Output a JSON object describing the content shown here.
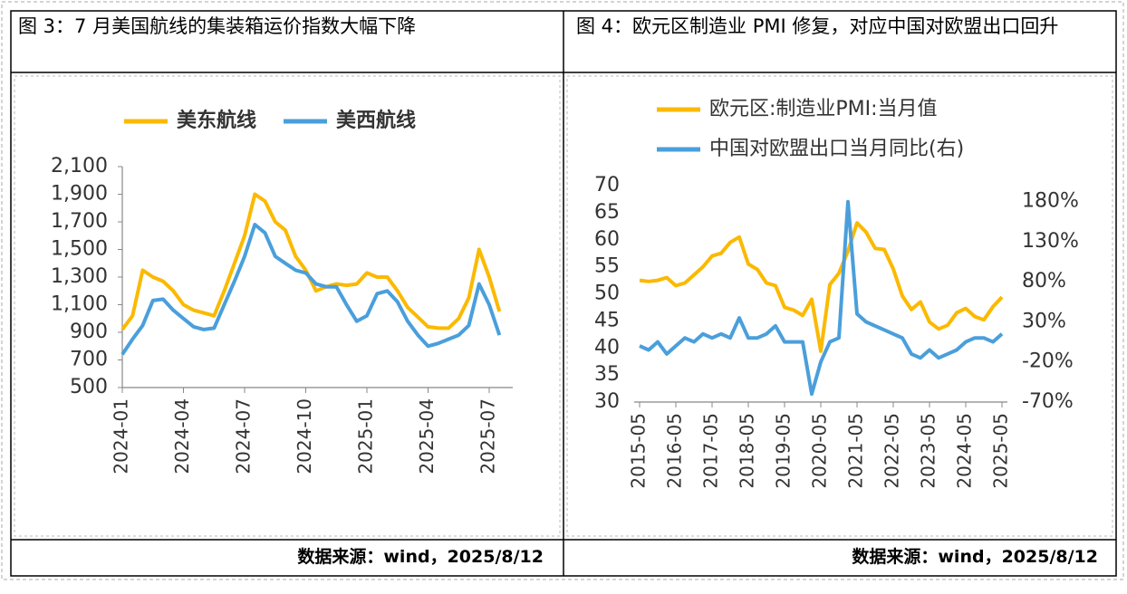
{
  "chart_data": [
    {
      "type": "line",
      "title": "图 3：7 月美国航线的集装箱运价指数大幅下降",
      "source": "数据来源：wind，2025/8/12",
      "legend": "top",
      "categories": [
        "2024-01",
        null,
        null,
        null,
        null,
        null,
        "2024-04",
        null,
        null,
        null,
        null,
        null,
        "2024-07",
        null,
        null,
        null,
        null,
        null,
        "2024-10",
        null,
        null,
        null,
        null,
        null,
        "2025-01",
        null,
        null,
        null,
        null,
        null,
        "2025-04",
        null,
        null,
        null,
        null,
        null,
        "2025-07",
        null
      ],
      "series": [
        {
          "name": "美东航线",
          "color": "#FBB900",
          "values": [
            920,
            1020,
            1350,
            1300,
            1270,
            1200,
            1100,
            1060,
            1040,
            1020,
            1200,
            1400,
            1600,
            1900,
            1850,
            1700,
            1640,
            1450,
            1350,
            1200,
            1230,
            1250,
            1240,
            1250,
            1330,
            1300,
            1300,
            1200,
            1080,
            1010,
            940,
            930,
            930,
            1000,
            1150,
            1500,
            1300,
            1050
          ]
        },
        {
          "name": "美西航线",
          "color": "#4A9FDB",
          "values": [
            740,
            850,
            950,
            1130,
            1140,
            1060,
            1000,
            940,
            920,
            930,
            1100,
            1270,
            1450,
            1680,
            1620,
            1450,
            1400,
            1350,
            1330,
            1250,
            1230,
            1230,
            1100,
            980,
            1020,
            1180,
            1200,
            1120,
            980,
            880,
            800,
            820,
            850,
            880,
            950,
            1250,
            1100,
            880
          ]
        }
      ],
      "ylim": [
        500,
        2100
      ],
      "yticks": [
        500,
        700,
        900,
        {
          "value": 1100,
          "label": "1,100"
        },
        {
          "value": 1300,
          "label": "1,300"
        },
        {
          "value": 1500,
          "label": "1,500"
        },
        {
          "value": 1700,
          "label": "1,700"
        },
        {
          "value": 1900,
          "label": "1,900"
        },
        {
          "value": 2100,
          "label": "2,100"
        }
      ]
    },
    {
      "type": "line",
      "title": "图 4：欧元区制造业 PMI 修复，对应中国对欧盟出口回升",
      "source": "数据来源：wind，2025/8/12",
      "legend": "top-left",
      "categories": [
        "2015-05",
        null,
        null,
        null,
        "2016-05",
        null,
        null,
        null,
        "2017-05",
        null,
        null,
        null,
        "2018-05",
        null,
        null,
        null,
        "2019-05",
        null,
        null,
        null,
        "2020-05",
        null,
        null,
        null,
        "2021-05",
        null,
        null,
        null,
        "2022-05",
        null,
        null,
        null,
        "2023-05",
        null,
        null,
        null,
        "2024-05",
        null,
        null,
        null,
        "2025-05"
      ],
      "series": [
        {
          "name": "欧元区:制造业PMI:当月值",
          "color": "#FBB900",
          "values": [
            52.5,
            52.3,
            52.5,
            53,
            51.5,
            52,
            53.5,
            55,
            57,
            57.5,
            59.5,
            60.5,
            55.5,
            54.5,
            52,
            51.5,
            47.5,
            47,
            46,
            49,
            39.4,
            51.7,
            53.8,
            57.9,
            63.1,
            61.4,
            58.4,
            58.2,
            54.6,
            49.6,
            47.1,
            48.5,
            44.8,
            43.5,
            44.2,
            46.5,
            47.3,
            45.8,
            45.2,
            47.6,
            49.4
          ]
        },
        {
          "name": "中国对欧盟出口当月同比(右)",
          "color": "#4A9FDB",
          "axis": "y2",
          "values": [
            0,
            -5,
            5,
            -10,
            0,
            10,
            5,
            15,
            10,
            15,
            10,
            35,
            10,
            10,
            15,
            25,
            5,
            5,
            5,
            -60,
            -20,
            5,
            10,
            180,
            40,
            30,
            25,
            20,
            15,
            10,
            -10,
            -15,
            -5,
            -15,
            -10,
            -5,
            5,
            10,
            10,
            5,
            15
          ]
        }
      ],
      "ylim": [
        30,
        70
      ],
      "yticks": [
        30,
        35,
        40,
        45,
        50,
        55,
        60,
        65,
        70
      ],
      "y2lim": [
        -70,
        200
      ],
      "y2ticks": [
        {
          "value": -70,
          "label": "-70%"
        },
        {
          "value": -20,
          "label": "-20%"
        },
        {
          "value": 30,
          "label": "30%"
        },
        {
          "value": 80,
          "label": "80%"
        },
        {
          "value": 130,
          "label": "130%"
        },
        {
          "value": 180,
          "label": "180%"
        }
      ]
    }
  ]
}
